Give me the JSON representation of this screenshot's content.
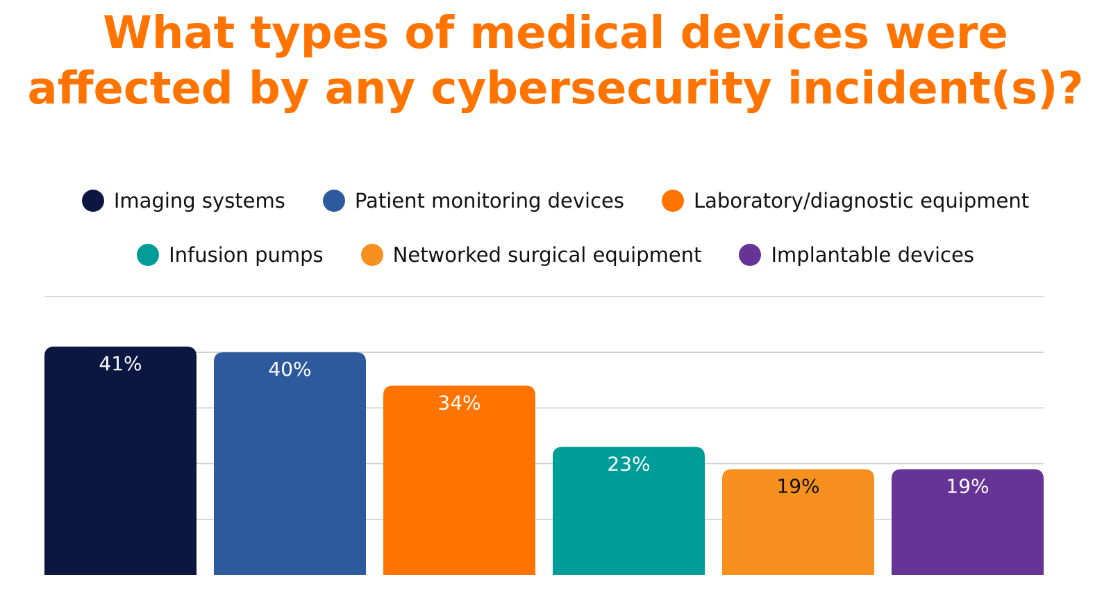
{
  "chart_data": {
    "type": "bar",
    "title": "What types of medical devices were affected by any cybersecurity incident(s)?",
    "title_lines": [
      "What types of medical devices were",
      "affected by any cybersecurity incident(s)?"
    ],
    "categories": [
      "Imaging systems",
      "Patient monitoring devices",
      "Laboratory/diagnostic equipment",
      "Infusion pumps",
      "Networked surgical equipment",
      "Implantable devices"
    ],
    "values": [
      41,
      40,
      34,
      23,
      19,
      19
    ],
    "data_labels": [
      "41%",
      "40%",
      "34%",
      "23%",
      "19%",
      "19%"
    ],
    "colors": [
      "#0b1740",
      "#2d5a9c",
      "#ff7300",
      "#009c98",
      "#f7901e",
      "#653496"
    ],
    "label_colors": [
      "#ffffff",
      "#ffffff",
      "#ffffff",
      "#ffffff",
      "#111111",
      "#ffffff"
    ],
    "ylim": [
      0,
      50
    ],
    "grid": true,
    "legend_position": "top",
    "title_color": "#ff7300"
  }
}
